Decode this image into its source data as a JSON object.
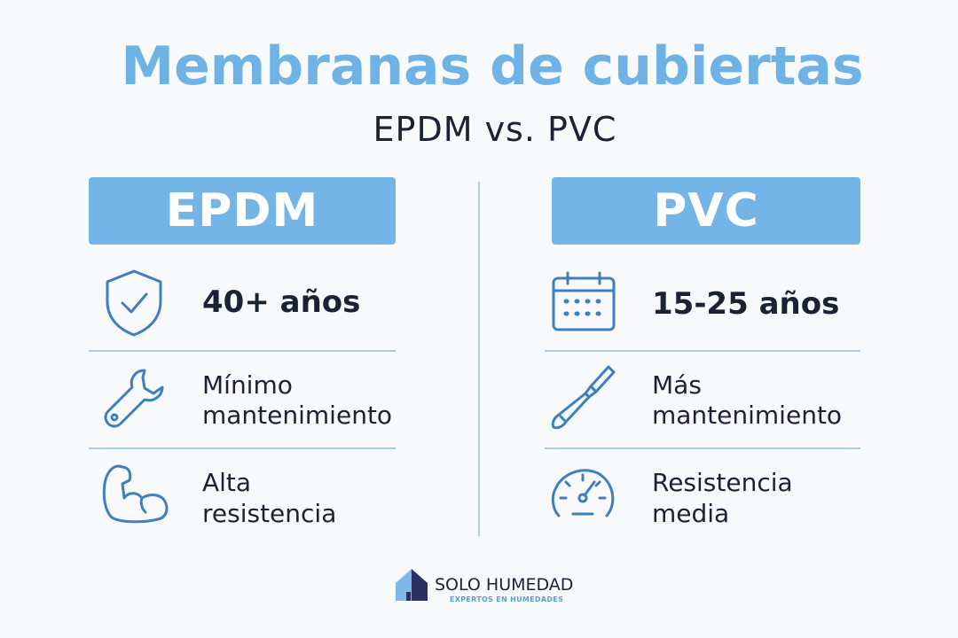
{
  "title": "Membranas de cubiertas",
  "subtitle": "EPDM vs. PVC",
  "columns": [
    {
      "header": "EPDM",
      "items": [
        {
          "lines": [
            "40+ años"
          ]
        },
        {
          "lines": [
            "Mínimo",
            "mantenimiento"
          ]
        },
        {
          "lines": [
            "Alta",
            "resistencia"
          ]
        }
      ]
    },
    {
      "header": "PVC",
      "items": [
        {
          "lines": [
            "15-25 años"
          ]
        },
        {
          "lines": [
            "Más",
            "mantenimiento"
          ]
        },
        {
          "lines": [
            "Resistencia",
            "media"
          ]
        }
      ]
    }
  ],
  "logo": {
    "name": "SOLO HUMEDAD",
    "tagline": "EXPERTOS EN HUMEDADES"
  }
}
